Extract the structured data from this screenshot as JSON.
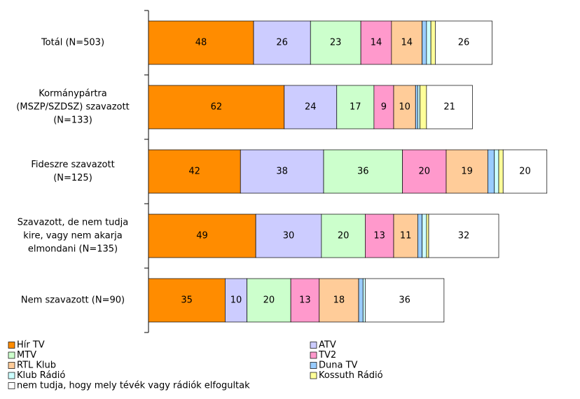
{
  "chart_data": {
    "type": "stacked-bar-horizontal",
    "categories": [
      "Totál (N=503)",
      "Kormánypártra\n(MSZP/SZDSZ) szavazott\n(N=133)",
      "Fideszre szavazott\n(N=125)",
      "Szavazott, de nem tudja\nkire, vagy nem akarja\nelmondani (N=135)",
      "Nem szavazott (N=90)"
    ],
    "series": [
      {
        "name": "Hír TV",
        "color": "#ff8c00",
        "values": [
          48,
          62,
          42,
          49,
          35
        ]
      },
      {
        "name": "ATV",
        "color": "#ccccff",
        "values": [
          26,
          24,
          38,
          30,
          10
        ]
      },
      {
        "name": "MTV",
        "color": "#ccffcc",
        "values": [
          23,
          17,
          36,
          20,
          20
        ]
      },
      {
        "name": "TV2",
        "color": "#ff99cc",
        "values": [
          14,
          9,
          20,
          13,
          13
        ]
      },
      {
        "name": "RTL Klub",
        "color": "#ffcc99",
        "values": [
          14,
          10,
          19,
          11,
          18
        ]
      },
      {
        "name": "Duna TV",
        "color": "#99ccff",
        "values": [
          2,
          1,
          3,
          2,
          2
        ]
      },
      {
        "name": "Klub Rádió",
        "color": "#ccffff",
        "values": [
          2,
          1,
          2,
          2,
          1
        ]
      },
      {
        "name": "Kossuth Rádió",
        "color": "#ffff99",
        "values": [
          2,
          3,
          2,
          1,
          0
        ]
      },
      {
        "name": "nem tudja, hogy mely tévék vagy rádiók elfogultak",
        "color": "#ffffff",
        "values": [
          26,
          21,
          20,
          32,
          36
        ]
      }
    ]
  }
}
